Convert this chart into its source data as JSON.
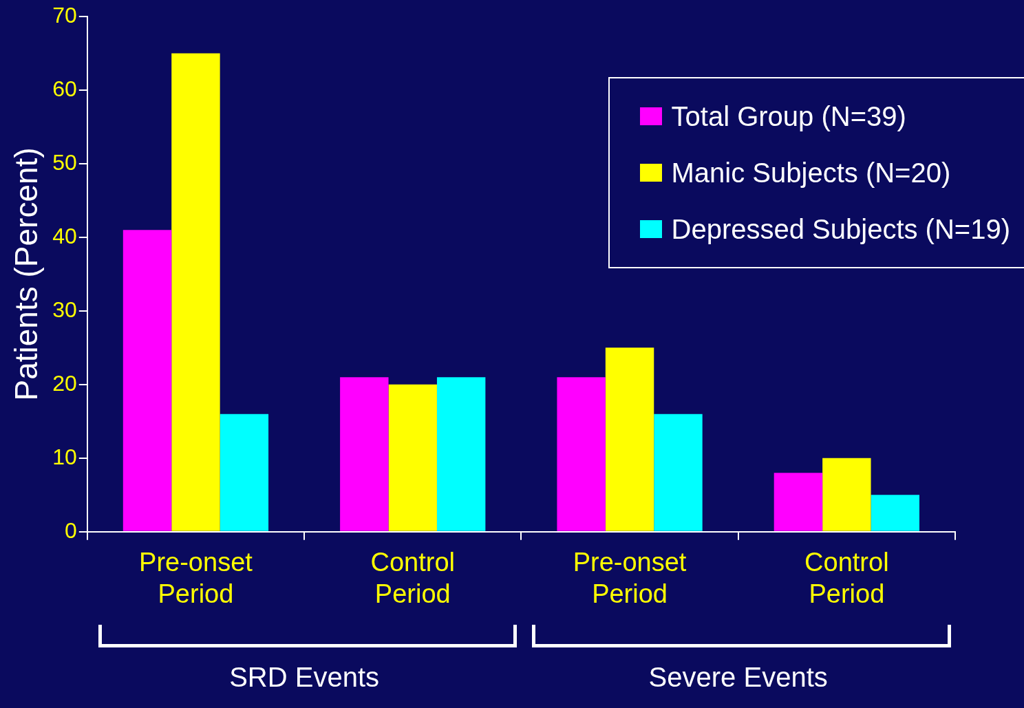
{
  "chart_data": {
    "type": "bar",
    "ylabel": "Patients (Percent)",
    "categories": [
      "Pre-onset Period",
      "Control Period",
      "Pre-onset Period",
      "Control Period"
    ],
    "series": [
      {
        "name": "Total Group (N=39)",
        "color": "#ff00ff",
        "values": [
          41,
          21,
          21,
          8
        ]
      },
      {
        "name": "Manic Subjects (N=20)",
        "color": "#ffff00",
        "values": [
          65,
          20,
          25,
          10
        ]
      },
      {
        "name": "Depressed Subjects (N=19)",
        "color": "#00ffff",
        "values": [
          16,
          21,
          16,
          5
        ]
      }
    ],
    "ylim": [
      0,
      70
    ],
    "yticks": [
      0,
      10,
      20,
      30,
      40,
      50,
      60,
      70
    ],
    "grid": false,
    "legend": "top right",
    "annotations": [
      "SRD Events",
      "Severe Events"
    ]
  }
}
